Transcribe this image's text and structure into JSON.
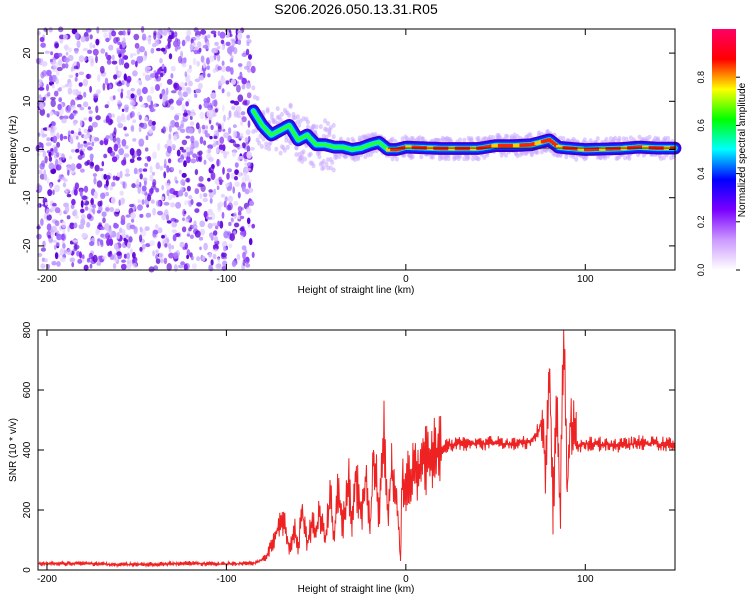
{
  "title": "S206.2026.050.13.31.R05",
  "chart_data": [
    {
      "type": "heatmap",
      "name": "spectrogram",
      "xlabel": "Height of straight line (km)",
      "ylabel": "Frequency (Hz)",
      "xlim": [
        -205,
        150
      ],
      "ylim": [
        -25,
        25
      ],
      "xticks": [
        -200,
        -100,
        0,
        100
      ],
      "xtick_labels": [
        "-200",
        "-100",
        "0",
        "100"
      ],
      "yticks": [
        -20,
        -10,
        0,
        10,
        20
      ],
      "ytick_labels": [
        "-20",
        "-10",
        "0",
        "10",
        "20"
      ],
      "noise_region_x": [
        -205,
        -85
      ],
      "signal_ridge": {
        "x": [
          -85,
          -80,
          -75,
          -70,
          -65,
          -60,
          -55,
          -50,
          -45,
          -40,
          -35,
          -30,
          -25,
          -20,
          -15,
          -10,
          -5,
          0,
          20,
          40,
          50,
          60,
          70,
          80,
          85,
          90,
          100,
          120,
          130,
          140,
          150
        ],
        "freq_hz": [
          8,
          5,
          3,
          4,
          5,
          2,
          3,
          1,
          1,
          0.5,
          0.5,
          0,
          0.3,
          1,
          1.5,
          0,
          0,
          0.5,
          0.2,
          0.2,
          0.8,
          0.8,
          1,
          2,
          0.5,
          0.3,
          0,
          0.2,
          0.5,
          0.3,
          0.3
        ]
      },
      "colorbar": {
        "label": "Normalized spectral amplitude",
        "range": [
          0,
          1
        ],
        "ticks": [
          0.0,
          0.2,
          0.4,
          0.6,
          0.8
        ],
        "tick_labels": [
          "0.0",
          "0.2",
          "0.4",
          "0.6",
          "0.8"
        ],
        "colormap": [
          "#ffffff",
          "#cc99ff",
          "#7a00ff",
          "#0000ff",
          "#00ffff",
          "#00ff00",
          "#ffff00",
          "#ff0000",
          "#ff0066"
        ]
      }
    },
    {
      "type": "line",
      "name": "snr",
      "xlabel": "Height of straight line (km)",
      "ylabel": "SNR (10 * v/v)",
      "xlim": [
        -205,
        150
      ],
      "ylim": [
        0,
        800
      ],
      "xticks": [
        -200,
        -100,
        0,
        100
      ],
      "xtick_labels": [
        "-200",
        "-100",
        "0",
        "100"
      ],
      "yticks": [
        0,
        200,
        400,
        600,
        800
      ],
      "ytick_labels": [
        "0",
        "200",
        "400",
        "600",
        "800"
      ],
      "color": "#ee2222",
      "series": [
        {
          "name": "SNR",
          "x": [
            -205,
            -180,
            -160,
            -140,
            -120,
            -100,
            -85,
            -78,
            -72,
            -68,
            -65,
            -62,
            -60,
            -58,
            -55,
            -52,
            -50,
            -48,
            -45,
            -42,
            -40,
            -38,
            -35,
            -32,
            -30,
            -28,
            -25,
            -22,
            -20,
            -18,
            -15,
            -12,
            -10,
            -8,
            -5,
            -3,
            -2,
            0,
            5,
            10,
            15,
            20,
            30,
            40,
            50,
            60,
            70,
            75,
            78,
            80,
            82,
            84,
            86,
            88,
            90,
            92,
            95,
            100,
            110,
            120,
            130,
            140,
            150
          ],
          "y": [
            20,
            22,
            18,
            20,
            22,
            20,
            22,
            40,
            120,
            180,
            60,
            140,
            70,
            200,
            90,
            160,
            110,
            200,
            90,
            260,
            120,
            250,
            150,
            300,
            140,
            330,
            170,
            350,
            120,
            400,
            200,
            460,
            190,
            330,
            240,
            30,
            300,
            300,
            320,
            360,
            390,
            410,
            420,
            420,
            425,
            420,
            430,
            480,
            350,
            670,
            180,
            560,
            190,
            800,
            260,
            520,
            410,
            420,
            420,
            415,
            425,
            420,
            420
          ]
        }
      ]
    }
  ]
}
